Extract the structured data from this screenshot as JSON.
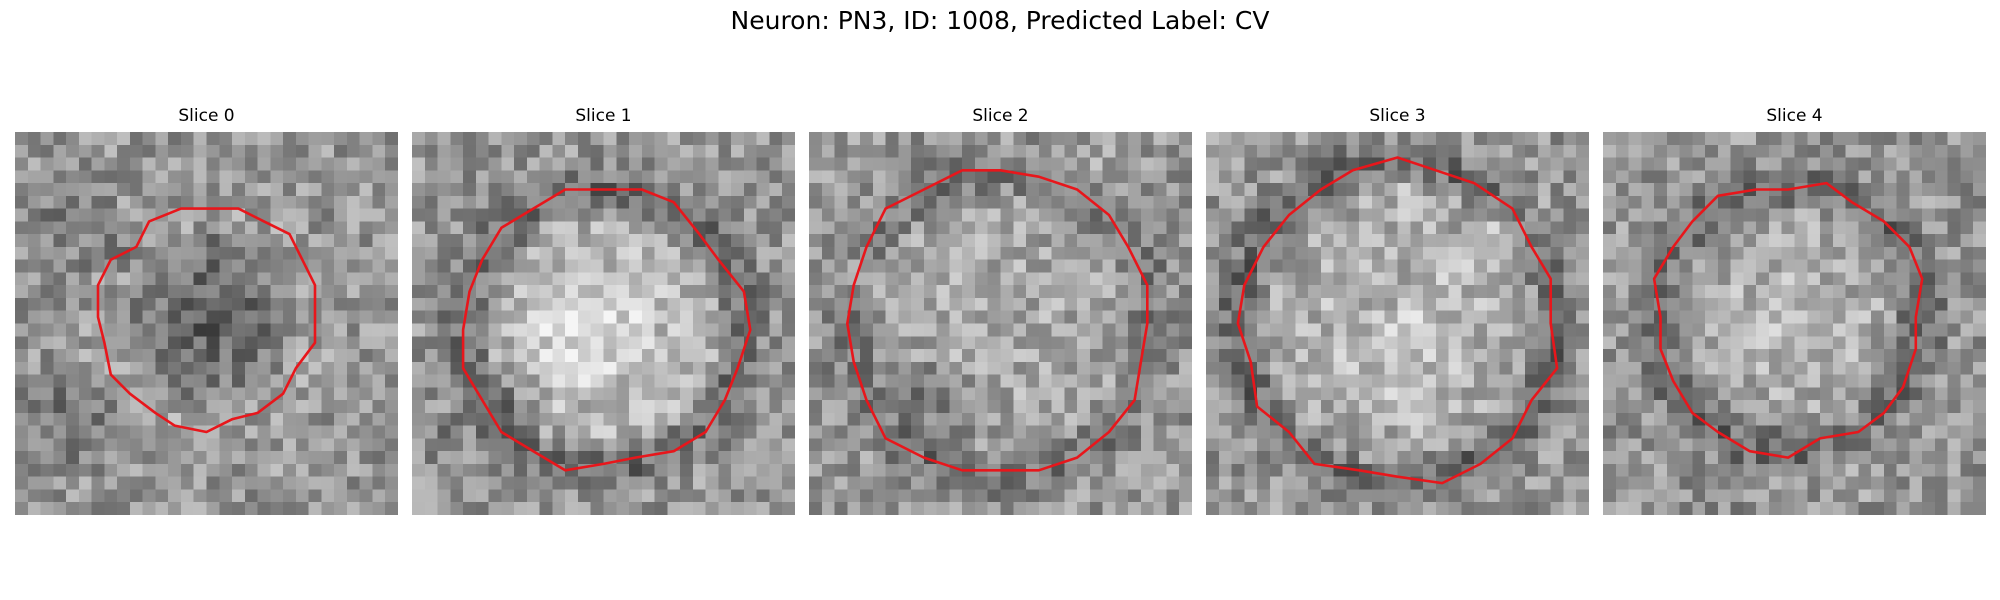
{
  "figure": {
    "title": "Neuron: PN3, ID: 1008, Predicted Label: CV"
  },
  "slices": [
    {
      "title": "Slice 0"
    },
    {
      "title": "Slice 1"
    },
    {
      "title": "Slice 2"
    },
    {
      "title": "Slice 3"
    },
    {
      "title": "Slice 4"
    }
  ],
  "colors": {
    "contour": "#e8161b",
    "colormap": "grayscale"
  }
}
